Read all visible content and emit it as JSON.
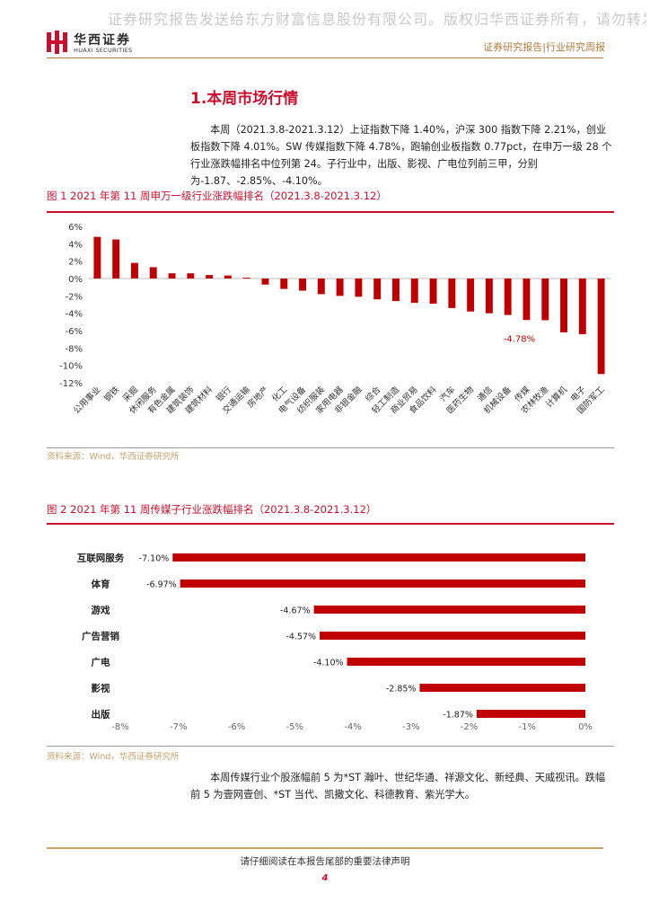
{
  "watermark": "证券研究报告发送给东方财富信息股份有限公司。版权归华西证券所有，请勿转发。 p",
  "header": {
    "logo_cn": "华西证券",
    "logo_en": "HUAXI SECURITIES",
    "report_type": "证券研究报告|行业研究周报"
  },
  "section": {
    "title": "1.本周市场行情"
  },
  "paragraph1": "本周（2021.3.8-2021.3.12）上证指数下降 1.40%，沪深 300 指数下降 2.21%，创业板指数下降 4.01%。SW 传媒指数下降 4.78%，跑输创业板指数 0.77pct，在申万一级 28 个行业涨跌幅排名中位列第 24。子行业中，出版、影视、广电位列前三甲，分别为-1.87、-2.85%、-4.10%。",
  "figure1": {
    "title": "图 1 2021 年第 11 周申万一级行业涨跌幅排名（2021.3.8-2021.3.12）",
    "source": "资料来源：Wind，华西证券研究所"
  },
  "figure2": {
    "title": "图 2 2021 年第 11 周传媒子行业涨跌幅排名（2021.3.8-2021.3.12）",
    "source": "资料来源：Wind，华西证券研究所"
  },
  "paragraph2": "本周传媒行业个股涨幅前 5 为*ST 瀚叶、世纪华通、祥源文化、新经典、天威视讯。跌幅前 5 为壹网壹创、*ST 当代、凯撒文化、科德教育、紫光学大。",
  "footer": {
    "note": "请仔细阅读在本报告尾部的重要法律声明",
    "page": "4"
  },
  "colors": {
    "bar": "#c00000",
    "accent": "#c8102e",
    "rule": "#b07a3a"
  },
  "chart_data": [
    {
      "type": "bar",
      "categories": [
        "公用事业",
        "钢铁",
        "采掘",
        "休闲服务",
        "有色金属",
        "建筑装饰",
        "建筑材料",
        "银行",
        "交通运输",
        "房地产",
        "化工",
        "电气设备",
        "纺织服装",
        "家用电器",
        "非银金融",
        "综合",
        "轻工制造",
        "商业贸易",
        "食品饮料",
        "汽车",
        "医药生物",
        "通信",
        "机械设备",
        "传媒",
        "农林牧渔",
        "计算机",
        "电子",
        "国防军工"
      ],
      "values": [
        4.8,
        4.5,
        1.8,
        1.3,
        0.6,
        0.6,
        0.4,
        0.35,
        0.1,
        -0.7,
        -1.2,
        -1.4,
        -1.8,
        -2.0,
        -2.1,
        -2.4,
        -2.6,
        -2.8,
        -2.9,
        -3.4,
        -3.8,
        -4.0,
        -4.2,
        -4.78,
        -4.8,
        -6.2,
        -6.4,
        -11.0
      ],
      "annotations": [
        {
          "category": "传媒",
          "text": "-4.78%"
        }
      ],
      "yticks": [
        "6%",
        "4%",
        "2%",
        "0%",
        "-2%",
        "-4%",
        "-6%",
        "-8%",
        "-10%",
        "-12%"
      ],
      "ylim": [
        -12,
        6
      ]
    },
    {
      "type": "bar",
      "orientation": "horizontal",
      "categories": [
        "互联网服务",
        "体育",
        "游戏",
        "广告营销",
        "广电",
        "影视",
        "出版"
      ],
      "values": [
        -7.1,
        -6.97,
        -4.67,
        -4.57,
        -4.1,
        -2.85,
        -1.87
      ],
      "labels": [
        "-7.10%",
        "-6.97%",
        "-4.67%",
        "-4.57%",
        "-4.10%",
        "-2.85%",
        "-1.87%"
      ],
      "xticks": [
        "-8%",
        "-7%",
        "-6%",
        "-5%",
        "-4%",
        "-3%",
        "-2%",
        "-1%",
        "0%"
      ],
      "xlim": [
        -8,
        0
      ]
    }
  ]
}
